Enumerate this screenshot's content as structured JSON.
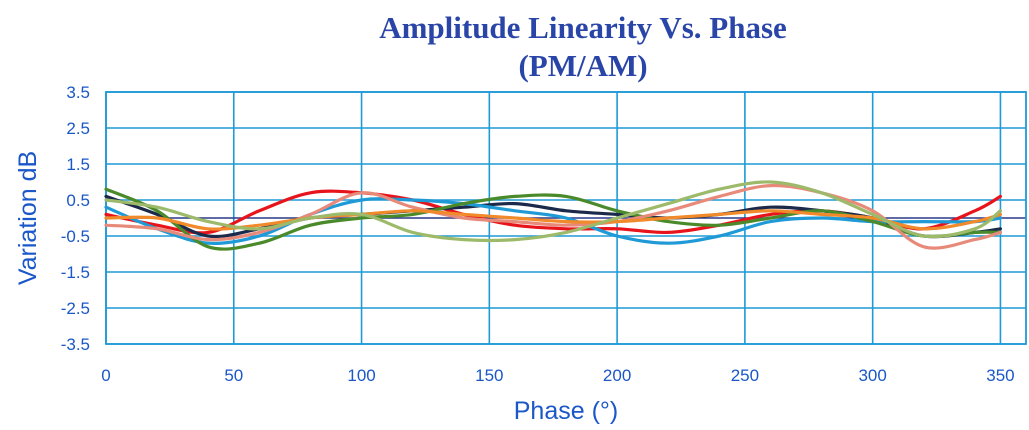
{
  "chart_data": {
    "type": "line",
    "title": "Amplitude Linearity Vs. Phase",
    "subtitle": "(PM/AM)",
    "xlabel": "Phase (°)",
    "ylabel": "Variation dB",
    "xlim": [
      0,
      360
    ],
    "ylim": [
      -3.5,
      3.5
    ],
    "x_ticks": [
      "0",
      "50",
      "100",
      "150",
      "200",
      "250",
      "300",
      "350"
    ],
    "y_ticks": [
      "3.5",
      "2.5",
      "1.5",
      "0.5",
      "-0.5",
      "-1.5",
      "-2.5",
      "-3.5"
    ],
    "grid": true,
    "x": [
      0,
      20,
      40,
      60,
      80,
      100,
      120,
      140,
      160,
      180,
      200,
      220,
      240,
      260,
      280,
      300,
      320,
      340,
      350
    ],
    "series": [
      {
        "color": "#e8141c",
        "values": [
          0.1,
          -0.2,
          -0.4,
          0.2,
          0.7,
          0.7,
          0.5,
          0.1,
          -0.2,
          -0.3,
          -0.3,
          -0.4,
          -0.2,
          0.1,
          0.2,
          0.0,
          -0.3,
          0.2,
          0.6
        ]
      },
      {
        "color": "#1b2a4a",
        "values": [
          0.6,
          0.1,
          -0.5,
          -0.3,
          0.0,
          0.1,
          0.2,
          0.3,
          0.4,
          0.2,
          0.1,
          0.0,
          0.1,
          0.3,
          0.2,
          0.0,
          -0.5,
          -0.4,
          -0.3
        ]
      },
      {
        "color": "#1f9ad6",
        "values": [
          0.3,
          -0.3,
          -0.7,
          -0.5,
          0.1,
          0.5,
          0.5,
          0.4,
          0.2,
          0.0,
          -0.5,
          -0.7,
          -0.5,
          -0.1,
          0.0,
          -0.1,
          -0.1,
          -0.1,
          0.0
        ]
      },
      {
        "color": "#4a8a2a",
        "values": [
          0.8,
          0.2,
          -0.8,
          -0.7,
          -0.2,
          0.0,
          0.1,
          0.4,
          0.6,
          0.6,
          0.2,
          -0.1,
          -0.2,
          0.0,
          0.2,
          -0.1,
          -0.5,
          -0.4,
          -0.4
        ]
      },
      {
        "color": "#e88a7a",
        "values": [
          -0.2,
          -0.3,
          -0.6,
          -0.4,
          0.1,
          0.7,
          0.3,
          0.0,
          -0.1,
          -0.2,
          -0.1,
          0.2,
          0.6,
          0.9,
          0.7,
          0.2,
          -0.8,
          -0.6,
          -0.4
        ]
      },
      {
        "color": "#f08a2a",
        "values": [
          0.0,
          0.0,
          -0.3,
          -0.2,
          0.0,
          0.1,
          0.2,
          0.1,
          0.0,
          -0.1,
          -0.1,
          0.0,
          0.1,
          0.2,
          0.1,
          0.0,
          -0.3,
          -0.1,
          0.1
        ]
      },
      {
        "color": "#9cba6a",
        "values": [
          0.5,
          0.3,
          -0.1,
          -0.3,
          0.0,
          0.1,
          -0.4,
          -0.6,
          -0.6,
          -0.4,
          0.0,
          0.4,
          0.8,
          1.0,
          0.7,
          0.1,
          -0.5,
          -0.3,
          0.2
        ]
      }
    ]
  }
}
